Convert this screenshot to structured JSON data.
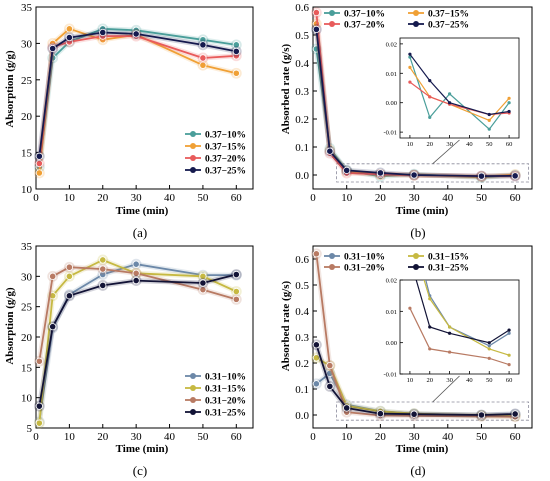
{
  "figure": {
    "panels": [
      {
        "letter": "(a)",
        "chart_data": {
          "type": "line",
          "title": "",
          "xlabel": "Time (min)",
          "ylabel": "Absorption (g/g)",
          "xlim": [
            0,
            65
          ],
          "ylim": [
            10,
            35
          ],
          "xticks": [
            0,
            10,
            20,
            30,
            40,
            50,
            60
          ],
          "yticks": [
            10,
            15,
            20,
            25,
            30,
            35
          ],
          "legend_position": "lower-right",
          "legend_columns": 1,
          "x": [
            1,
            5,
            10,
            20,
            30,
            50,
            60
          ],
          "series": [
            {
              "name": "0.37−10%",
              "color": "#4a9e9a",
              "values": [
                13.0,
                28.0,
                30.2,
                32.0,
                31.8,
                30.5,
                29.8
              ]
            },
            {
              "name": "0.37−15%",
              "color": "#f0a035",
              "values": [
                12.2,
                30.0,
                32.0,
                30.5,
                31.2,
                27.0,
                25.9
              ]
            },
            {
              "name": "0.37−20%",
              "color": "#e85b5b",
              "values": [
                13.5,
                29.5,
                30.2,
                31.0,
                31.0,
                28.0,
                28.3
              ]
            },
            {
              "name": "0.37−25%",
              "color": "#151a4e",
              "values": [
                14.5,
                29.3,
                30.8,
                31.5,
                31.3,
                29.8,
                28.9
              ]
            }
          ]
        }
      },
      {
        "letter": "(b)",
        "chart_data": {
          "type": "line",
          "title": "",
          "xlabel": "Time (min)",
          "ylabel": "Absorbed rate (g/s)",
          "xlim": [
            0,
            65
          ],
          "ylim": [
            -0.05,
            0.6
          ],
          "xticks": [
            0,
            10,
            20,
            30,
            40,
            50,
            60
          ],
          "yticks": [
            0.0,
            0.1,
            0.2,
            0.3,
            0.4,
            0.5,
            0.6
          ],
          "legend_position": "top",
          "legend_columns": 2,
          "x": [
            1,
            5,
            10,
            20,
            30,
            50,
            60
          ],
          "series": [
            {
              "name": "0.37−10%",
              "color": "#4a9e9a",
              "values": [
                0.45,
                0.095,
                0.0155,
                -0.005,
                0.003,
                -0.009,
                0.0
              ]
            },
            {
              "name": "0.37−15%",
              "color": "#f0a035",
              "values": [
                0.54,
                0.088,
                0.012,
                0.002,
                -0.0005,
                -0.006,
                0.0015
              ]
            },
            {
              "name": "0.37−20%",
              "color": "#e85b5b",
              "values": [
                0.58,
                0.078,
                0.007,
                0.002,
                -0.0005,
                -0.004,
                -0.0035
              ]
            },
            {
              "name": "0.37−25%",
              "color": "#151a4e",
              "values": [
                0.52,
                0.085,
                0.0165,
                0.0075,
                0.0,
                -0.004,
                -0.003
              ]
            }
          ],
          "inset": {
            "xlim": [
              5,
              65
            ],
            "ylim": [
              -0.012,
              0.022
            ],
            "xticks": [
              10,
              20,
              30,
              40,
              50,
              60
            ],
            "yticks": [
              -0.01,
              0.0,
              0.01,
              0.02
            ],
            "ytick_labels": [
              "-0.01",
              "0.00",
              "0.01",
              "0.02"
            ],
            "x": [
              10,
              20,
              30,
              50,
              60
            ],
            "series": [
              {
                "color": "#4a9e9a",
                "values": [
                  0.0155,
                  -0.005,
                  0.003,
                  -0.009,
                  0.0
                ]
              },
              {
                "color": "#f0a035",
                "values": [
                  0.012,
                  0.002,
                  -0.0005,
                  -0.006,
                  0.0015
                ]
              },
              {
                "color": "#e85b5b",
                "values": [
                  0.007,
                  0.002,
                  -0.0005,
                  -0.004,
                  -0.0035
                ]
              },
              {
                "color": "#151a4e",
                "values": [
                  0.0165,
                  0.0075,
                  0.0,
                  -0.004,
                  -0.003
                ]
              }
            ]
          }
        }
      },
      {
        "letter": "(c)",
        "chart_data": {
          "type": "line",
          "title": "",
          "xlabel": "Time (min)",
          "ylabel": "Absorption (g/g)",
          "xlim": [
            0,
            65
          ],
          "ylim": [
            5,
            35
          ],
          "xticks": [
            0,
            10,
            20,
            30,
            40,
            50,
            60
          ],
          "yticks": [
            5,
            10,
            15,
            20,
            25,
            30,
            35
          ],
          "legend_position": "lower-right",
          "legend_columns": 1,
          "x": [
            1,
            5,
            10,
            20,
            30,
            50,
            60
          ],
          "series": [
            {
              "name": "0.31−10%",
              "color": "#6c88a8",
              "values": [
                6.0,
                21.5,
                27.0,
                30.3,
                32.0,
                30.2,
                30.2
              ]
            },
            {
              "name": "0.31−15%",
              "color": "#c6b942",
              "values": [
                5.8,
                26.8,
                30.0,
                32.7,
                30.5,
                30.0,
                27.5
              ]
            },
            {
              "name": "0.31−20%",
              "color": "#b87a63",
              "values": [
                16.0,
                30.0,
                31.5,
                31.2,
                30.5,
                27.8,
                26.2
              ]
            },
            {
              "name": "0.31−25%",
              "color": "#121336",
              "values": [
                8.6,
                21.7,
                26.8,
                28.5,
                29.3,
                28.9,
                30.3
              ]
            }
          ]
        }
      },
      {
        "letter": "(d)",
        "chart_data": {
          "type": "line",
          "title": "",
          "xlabel": "Time (min)",
          "ylabel": "Absorbed rate (g/s)",
          "xlim": [
            0,
            65
          ],
          "ylim": [
            -0.05,
            0.65
          ],
          "xticks": [
            0,
            10,
            20,
            30,
            40,
            50,
            60
          ],
          "yticks": [
            0.0,
            0.1,
            0.2,
            0.3,
            0.4,
            0.5,
            0.6
          ],
          "legend_position": "top",
          "legend_columns": 2,
          "x": [
            1,
            5,
            10,
            20,
            30,
            50,
            60
          ],
          "series": [
            {
              "name": "0.31−10%",
              "color": "#6c88a8",
              "values": [
                0.12,
                0.16,
                0.04,
                0.015,
                0.005,
                -0.001,
                0.003
              ]
            },
            {
              "name": "0.31−15%",
              "color": "#c6b942",
              "values": [
                0.22,
                0.19,
                0.035,
                0.014,
                0.005,
                -0.002,
                -0.004
              ]
            },
            {
              "name": "0.31−20%",
              "color": "#b87a63",
              "values": [
                0.62,
                0.19,
                0.011,
                -0.002,
                -0.003,
                -0.005,
                -0.007
              ]
            },
            {
              "name": "0.31−25%",
              "color": "#121336",
              "values": [
                0.27,
                0.11,
                0.027,
                0.005,
                0.003,
                0.0,
                0.004
              ]
            }
          ],
          "inset": {
            "xlim": [
              5,
              65
            ],
            "ylim": [
              -0.01,
              0.02
            ],
            "xticks": [
              10,
              20,
              30,
              40,
              50,
              60
            ],
            "yticks": [
              -0.01,
              0.0,
              0.01,
              0.02
            ],
            "ytick_labels": [
              "-0.01",
              "0.00",
              "0.01",
              "0.02"
            ],
            "x": [
              10,
              20,
              30,
              50,
              60
            ],
            "series": [
              {
                "color": "#6c88a8",
                "values": [
                  0.04,
                  0.015,
                  0.005,
                  -0.001,
                  0.003
                ]
              },
              {
                "color": "#c6b942",
                "values": [
                  0.035,
                  0.014,
                  0.005,
                  -0.002,
                  -0.004
                ]
              },
              {
                "color": "#b87a63",
                "values": [
                  0.011,
                  -0.002,
                  -0.003,
                  -0.005,
                  -0.007
                ]
              },
              {
                "color": "#121336",
                "values": [
                  0.027,
                  0.005,
                  0.003,
                  0.0,
                  0.004
                ]
              }
            ]
          }
        }
      }
    ]
  }
}
